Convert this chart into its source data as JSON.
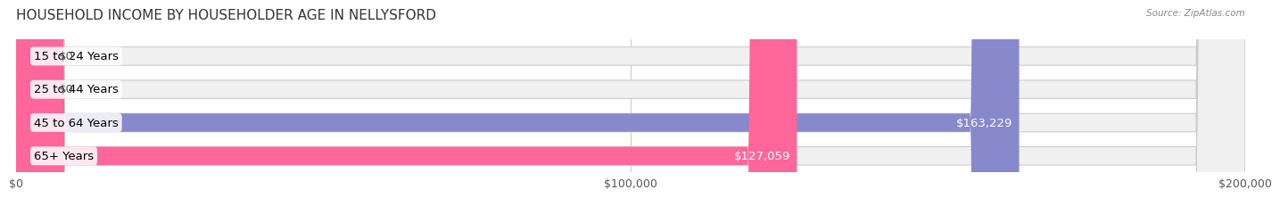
{
  "title": "HOUSEHOLD INCOME BY HOUSEHOLDER AGE IN NELLYSFORD",
  "source": "Source: ZipAtlas.com",
  "categories": [
    "15 to 24 Years",
    "25 to 44 Years",
    "45 to 64 Years",
    "65+ Years"
  ],
  "values": [
    0,
    0,
    163229,
    127059
  ],
  "bar_colors": [
    "#cc99cc",
    "#66cccc",
    "#8888cc",
    "#ff6699"
  ],
  "bar_bg_color": "#f0f0f0",
  "label_colors": [
    "#555555",
    "#555555",
    "#ffffff",
    "#ffffff"
  ],
  "value_labels": [
    "$0",
    "$0",
    "$163,229",
    "$127,059"
  ],
  "xlim": [
    0,
    200000
  ],
  "xticks": [
    0,
    100000,
    200000
  ],
  "xtick_labels": [
    "$0",
    "$100,000",
    "$200,000"
  ],
  "fig_bg_color": "#ffffff",
  "bar_height": 0.55,
  "title_fontsize": 11,
  "label_fontsize": 9.5,
  "value_fontsize": 9.5,
  "tick_fontsize": 9
}
